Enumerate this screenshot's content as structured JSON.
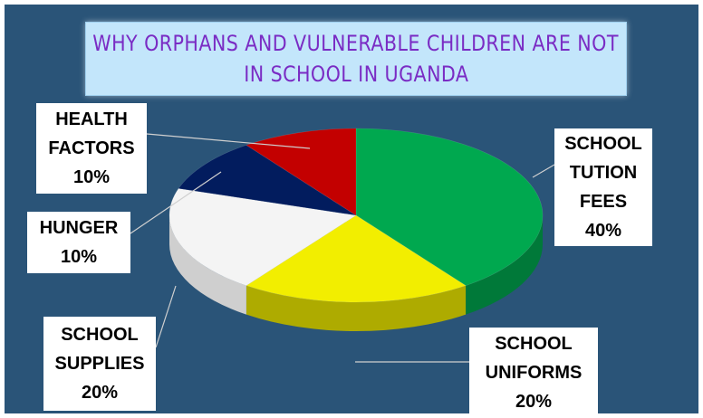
{
  "title": {
    "line1": "WHY ORPHANS AND VULNERABLE CHILDREN ARE NOT",
    "line2": "IN SCHOOL IN UGANDA"
  },
  "colors": {
    "background": "#2a5478",
    "school_tution_fees": "#00a84f",
    "school_uniforms": "#f2ee00",
    "school_supplies": "#f4f4f4",
    "hunger": "#021c5e",
    "health_factors": "#c30000",
    "leader_line": "#d0d0d0"
  },
  "chart_data": {
    "type": "pie",
    "style": "3d",
    "title": "WHY ORPHANS AND VULNERABLE CHILDREN ARE NOT IN SCHOOL IN UGANDA",
    "slices": [
      {
        "label_lines": [
          "SCHOOL",
          "TUTION",
          "FEES"
        ],
        "percent_text": "40%",
        "value": 40
      },
      {
        "label_lines": [
          "SCHOOL",
          "UNIFORMS"
        ],
        "percent_text": "20%",
        "value": 20
      },
      {
        "label_lines": [
          "SCHOOL",
          "SUPPLIES"
        ],
        "percent_text": "20%",
        "value": 20
      },
      {
        "label_lines": [
          "HUNGER"
        ],
        "percent_text": "10%",
        "value": 10
      },
      {
        "label_lines": [
          "HEALTH",
          "FACTORS"
        ],
        "percent_text": "10%",
        "value": 10
      }
    ],
    "legend": "none"
  }
}
